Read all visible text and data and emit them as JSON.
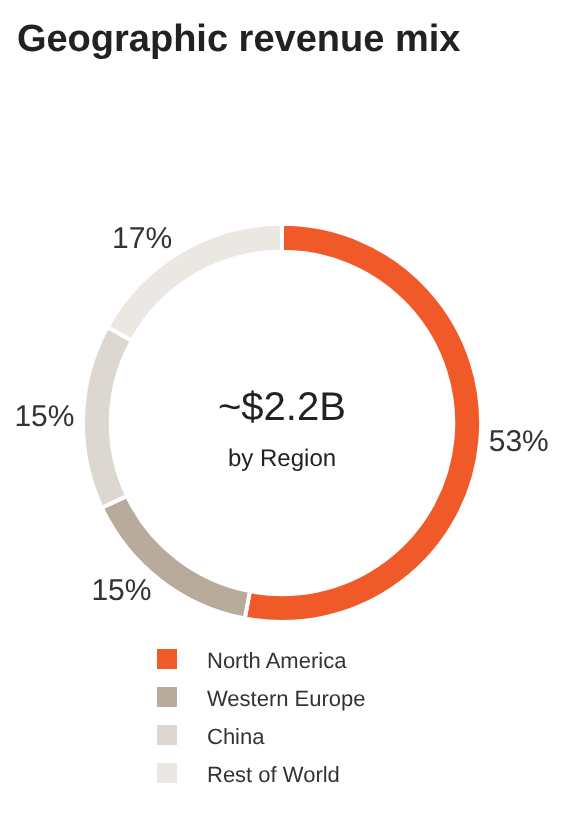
{
  "chart_data": {
    "type": "donut",
    "title": "Geographic revenue mix",
    "categories": [
      "North America",
      "Western Europe",
      "China",
      "Rest of World"
    ],
    "values": [
      53,
      15,
      15,
      17
    ],
    "colors": [
      "#f05a28",
      "#b8ab9b",
      "#dcd7d0",
      "#ebe8e4"
    ],
    "value_labels": [
      "53%",
      "15%",
      "15%",
      "17%"
    ],
    "annotations": [
      "~$2.2B",
      "by Region"
    ],
    "legend": "bottom"
  }
}
